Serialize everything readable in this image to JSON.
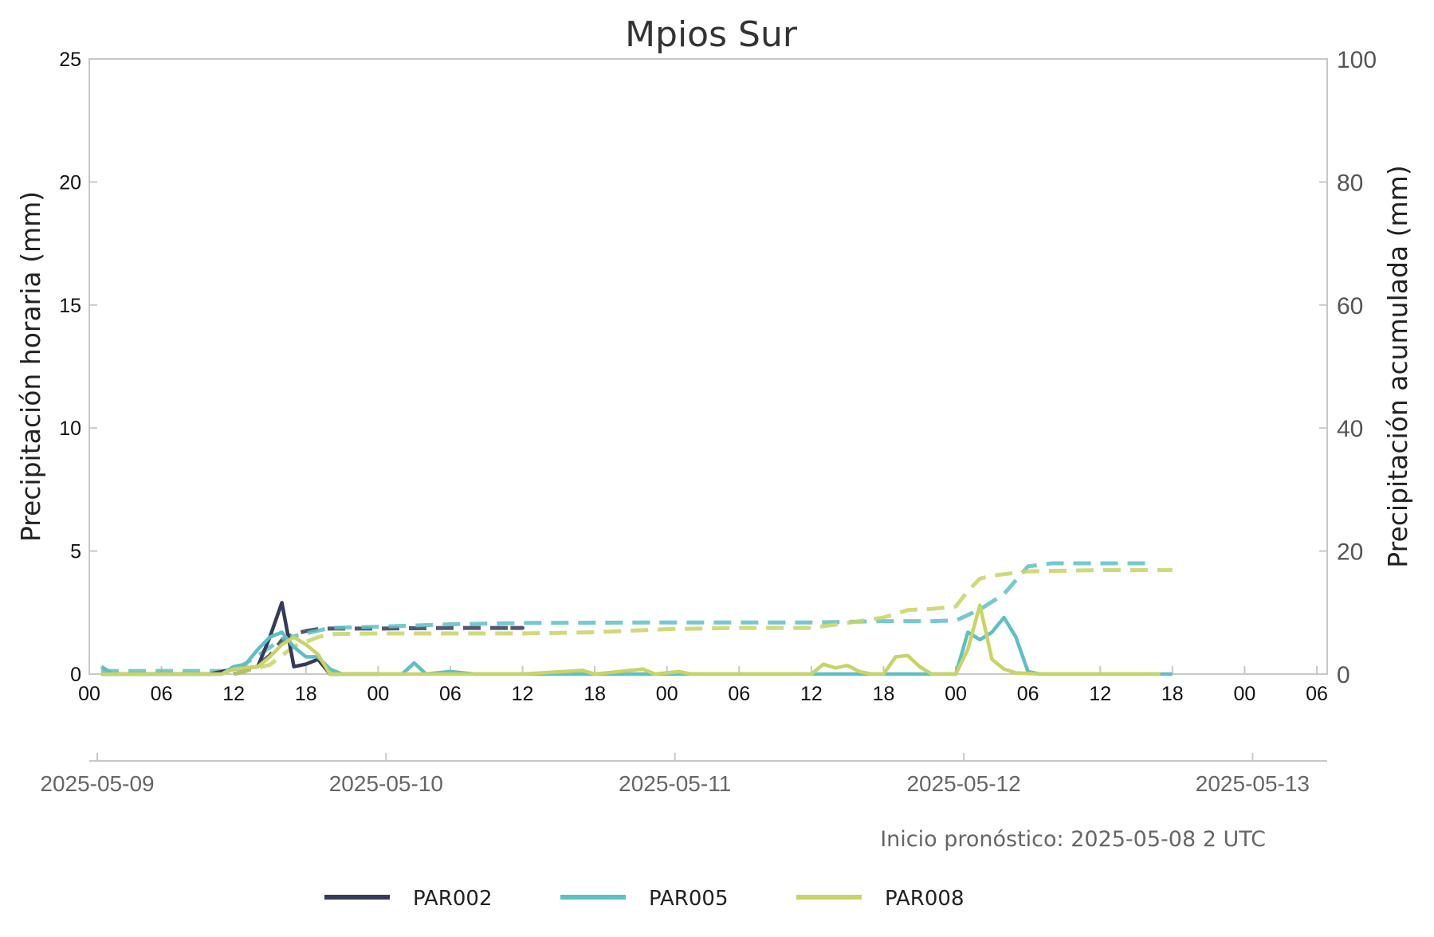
{
  "chart_data": {
    "type": "line",
    "title": "Mpios Sur",
    "ylabel_left": "Precipitación horaria (mm)",
    "ylabel_right": "Precipitación acumulada (mm)",
    "ylim_left": [
      0,
      25
    ],
    "ylim_right": [
      0,
      100
    ],
    "yticks_left": [
      "0",
      "5",
      "10",
      "15",
      "20",
      "25"
    ],
    "yticks_right": [
      "0",
      "20",
      "40",
      "60",
      "80",
      "100"
    ],
    "hour_ticks": [
      "00",
      "06",
      "12",
      "18",
      "00",
      "06",
      "12",
      "18",
      "00",
      "06",
      "12",
      "18",
      "00",
      "06",
      "12",
      "18",
      "00",
      "06"
    ],
    "date_ticks": [
      "2025-05-09",
      "2025-05-10",
      "2025-05-11",
      "2025-05-12",
      "2025-05-13"
    ],
    "x_start": "2025-05-09 00:00",
    "x_end": "2025-05-13 07:00",
    "grid": false,
    "legend_position": "bottom-center",
    "annotation": "Inicio pronóstico: 2025-05-08 2 UTC",
    "series": [
      {
        "name": "PAR002",
        "color": "#363a5a",
        "hourly_points": [
          [
            1,
            0
          ],
          [
            8,
            0
          ],
          [
            10,
            0
          ],
          [
            12,
            0.2
          ],
          [
            14,
            0.3
          ],
          [
            15,
            1.5
          ],
          [
            16,
            2.9
          ],
          [
            17,
            0.3
          ],
          [
            18,
            0.4
          ],
          [
            19,
            0.6
          ],
          [
            20,
            0
          ],
          [
            22,
            0
          ],
          [
            24,
            0
          ]
        ],
        "accum_points": [
          [
            12,
            0
          ],
          [
            13,
            0.5
          ],
          [
            14,
            1.5
          ],
          [
            15,
            3
          ],
          [
            16,
            5.5
          ],
          [
            17,
            6.5
          ],
          [
            18,
            7
          ],
          [
            19,
            7.3
          ],
          [
            20,
            7.4
          ],
          [
            24,
            7.4
          ],
          [
            30,
            7.5
          ],
          [
            36,
            7.5
          ],
          [
            35,
            7.5
          ]
        ]
      },
      {
        "name": "PAR005",
        "color": "#5ebfc6",
        "hourly_points": [
          [
            1,
            0.3
          ],
          [
            2,
            0
          ],
          [
            11,
            0
          ],
          [
            12,
            0.3
          ],
          [
            13,
            0.4
          ],
          [
            14,
            1
          ],
          [
            15,
            1.5
          ],
          [
            16,
            1.7
          ],
          [
            17,
            1.1
          ],
          [
            18,
            0.7
          ],
          [
            19,
            0.7
          ],
          [
            20,
            0.2
          ],
          [
            21,
            0
          ],
          [
            25,
            0
          ],
          [
            26,
            0
          ],
          [
            27,
            0.45
          ],
          [
            28,
            0
          ],
          [
            30,
            0.1
          ],
          [
            32,
            0
          ],
          [
            36,
            0
          ],
          [
            40,
            0
          ],
          [
            48,
            0
          ],
          [
            60,
            0
          ],
          [
            72,
            0
          ],
          [
            73,
            1.7
          ],
          [
            74,
            1.4
          ],
          [
            75,
            1.7
          ],
          [
            76,
            2.3
          ],
          [
            77,
            1.5
          ],
          [
            78,
            0.1
          ],
          [
            79,
            0
          ],
          [
            90,
            0
          ]
        ],
        "accum_points": [
          [
            1,
            0.5
          ],
          [
            12,
            0.5
          ],
          [
            14,
            3
          ],
          [
            16,
            5.7
          ],
          [
            18,
            6.6
          ],
          [
            20,
            7.5
          ],
          [
            24,
            7.7
          ],
          [
            30,
            8.1
          ],
          [
            36,
            8.3
          ],
          [
            48,
            8.4
          ],
          [
            60,
            8.4
          ],
          [
            66,
            8.6
          ],
          [
            70,
            8.6
          ],
          [
            72,
            8.7
          ],
          [
            74,
            10.5
          ],
          [
            76,
            13
          ],
          [
            78,
            17.5
          ],
          [
            80,
            18
          ],
          [
            84,
            18
          ],
          [
            88,
            18
          ]
        ]
      },
      {
        "name": "PAR008",
        "color": "#c8d464",
        "hourly_points": [
          [
            1,
            0
          ],
          [
            11,
            0
          ],
          [
            12,
            0.2
          ],
          [
            14,
            0.3
          ],
          [
            15,
            0.7
          ],
          [
            16,
            1.2
          ],
          [
            17,
            1.5
          ],
          [
            18,
            1.2
          ],
          [
            19,
            0.8
          ],
          [
            20,
            0
          ],
          [
            25,
            0
          ],
          [
            36,
            0
          ],
          [
            41,
            0.15
          ],
          [
            42,
            0
          ],
          [
            46,
            0.2
          ],
          [
            47,
            0
          ],
          [
            49,
            0.1
          ],
          [
            50,
            0
          ],
          [
            60,
            0
          ],
          [
            61,
            0.4
          ],
          [
            62,
            0.25
          ],
          [
            63,
            0.35
          ],
          [
            64,
            0.1
          ],
          [
            65,
            0
          ],
          [
            66,
            0
          ],
          [
            67,
            0.7
          ],
          [
            68,
            0.75
          ],
          [
            69,
            0.3
          ],
          [
            70,
            0
          ],
          [
            72,
            0
          ],
          [
            73,
            1
          ],
          [
            74,
            2.8
          ],
          [
            75,
            0.6
          ],
          [
            76,
            0.2
          ],
          [
            77,
            0.05
          ],
          [
            79,
            0
          ],
          [
            89,
            0
          ]
        ],
        "accum_points": [
          [
            12,
            0
          ],
          [
            15,
            1.5
          ],
          [
            17,
            4.5
          ],
          [
            19,
            6
          ],
          [
            20,
            6.5
          ],
          [
            24,
            6.6
          ],
          [
            36,
            6.6
          ],
          [
            42,
            6.8
          ],
          [
            48,
            7.3
          ],
          [
            54,
            7.5
          ],
          [
            60,
            7.5
          ],
          [
            64,
            8.6
          ],
          [
            66,
            9.2
          ],
          [
            68,
            10.4
          ],
          [
            70,
            10.6
          ],
          [
            72,
            11
          ],
          [
            73,
            13.5
          ],
          [
            74,
            15.5
          ],
          [
            75,
            16
          ],
          [
            78,
            16.7
          ],
          [
            84,
            16.9
          ],
          [
            90,
            16.9
          ]
        ]
      }
    ]
  }
}
